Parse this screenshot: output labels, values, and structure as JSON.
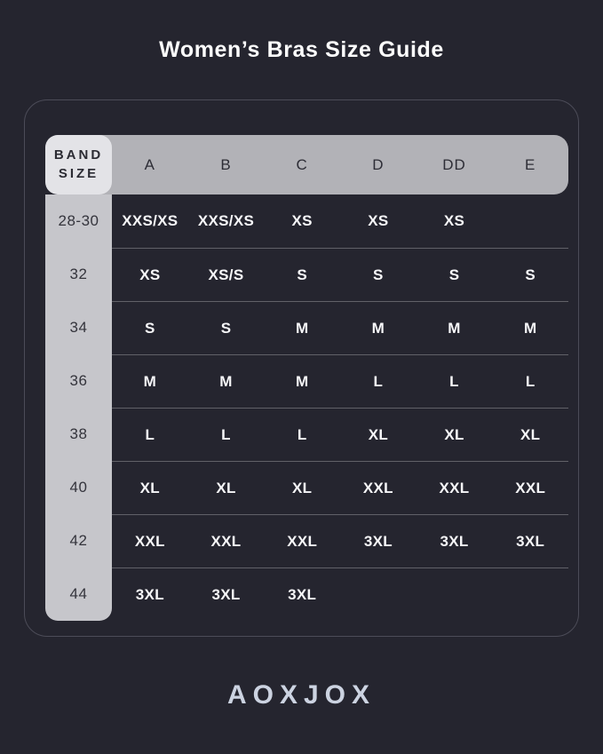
{
  "title": "Women’s Bras Size Guide",
  "brand": "AOXJOX",
  "colors": {
    "background": "#25252f",
    "header_pill": "#b2b2b7",
    "corner_cell": "#e3e3e7",
    "band_column": "#c6c6cb",
    "value_text": "#f7f7f9",
    "dark_text": "#2d2d36",
    "card_border": "#4c4c58",
    "brand_text": "#ccd3e1"
  },
  "chart_data": {
    "type": "table",
    "title": "Women’s Bras Size Guide",
    "corner_header_line1": "BAND",
    "corner_header_line2": "SIZE",
    "columns": [
      "A",
      "B",
      "C",
      "D",
      "DD",
      "E"
    ],
    "rows": [
      {
        "band": "28-30",
        "values": [
          "XXS/XS",
          "XXS/XS",
          "XS",
          "XS",
          "XS",
          ""
        ]
      },
      {
        "band": "32",
        "values": [
          "XS",
          "XS/S",
          "S",
          "S",
          "S",
          "S"
        ]
      },
      {
        "band": "34",
        "values": [
          "S",
          "S",
          "M",
          "M",
          "M",
          "M"
        ]
      },
      {
        "band": "36",
        "values": [
          "M",
          "M",
          "M",
          "L",
          "L",
          "L"
        ]
      },
      {
        "band": "38",
        "values": [
          "L",
          "L",
          "L",
          "XL",
          "XL",
          "XL"
        ]
      },
      {
        "band": "40",
        "values": [
          "XL",
          "XL",
          "XL",
          "XXL",
          "XXL",
          "XXL"
        ]
      },
      {
        "band": "42",
        "values": [
          "XXL",
          "XXL",
          "XXL",
          "3XL",
          "3XL",
          "3XL"
        ]
      },
      {
        "band": "44",
        "values": [
          "3XL",
          "3XL",
          "3XL",
          "",
          "",
          ""
        ]
      }
    ]
  }
}
